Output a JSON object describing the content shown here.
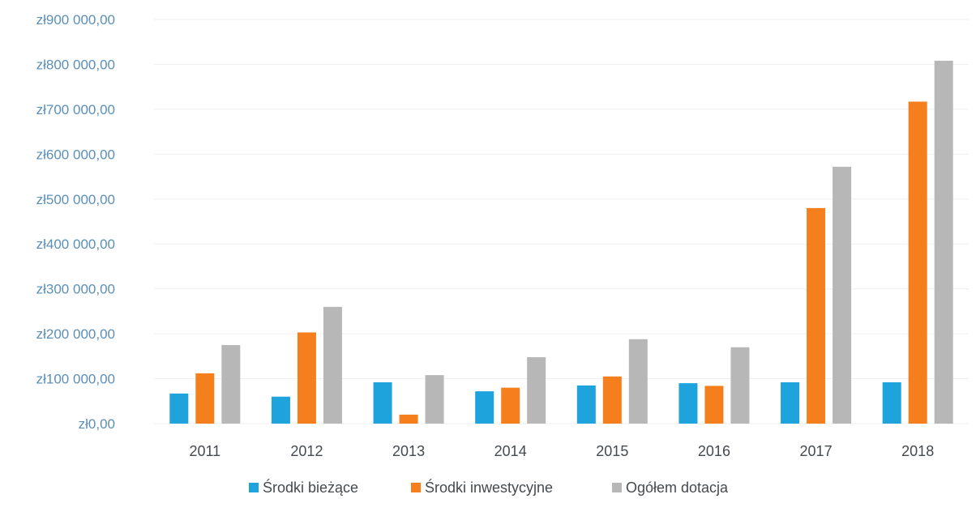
{
  "chart_data": {
    "type": "bar",
    "categories": [
      "2011",
      "2012",
      "2013",
      "2014",
      "2015",
      "2016",
      "2017",
      "2018"
    ],
    "series": [
      {
        "name": "Środki bieżące",
        "color": "#1fa3dc",
        "values": [
          67000,
          60000,
          92000,
          72000,
          85000,
          90000,
          92000,
          92000
        ]
      },
      {
        "name": "Środki inwestycyjne",
        "color": "#f47f1c",
        "values": [
          112000,
          203000,
          20000,
          80000,
          105000,
          84000,
          480000,
          717000
        ]
      },
      {
        "name": "Ogółem dotacja",
        "color": "#b7b7b7",
        "values": [
          175000,
          260000,
          108000,
          148000,
          188000,
          170000,
          572000,
          808000
        ]
      }
    ],
    "ylim": [
      0,
      900000
    ],
    "y_ticks": [
      {
        "value": 0,
        "label": "zł0,00"
      },
      {
        "value": 100000,
        "label": "zł100 000,00"
      },
      {
        "value": 200000,
        "label": "zł200 000,00"
      },
      {
        "value": 300000,
        "label": "zł300 000,00"
      },
      {
        "value": 400000,
        "label": "zł400 000,00"
      },
      {
        "value": 500000,
        "label": "zł500 000,00"
      },
      {
        "value": 600000,
        "label": "zł600 000,00"
      },
      {
        "value": 700000,
        "label": "zł700 000,00"
      },
      {
        "value": 800000,
        "label": "zł800 000,00"
      },
      {
        "value": 900000,
        "label": "zł900 000,00"
      }
    ],
    "title": "",
    "xlabel": "",
    "ylabel": "",
    "grid": true,
    "legend_position": "bottom"
  }
}
